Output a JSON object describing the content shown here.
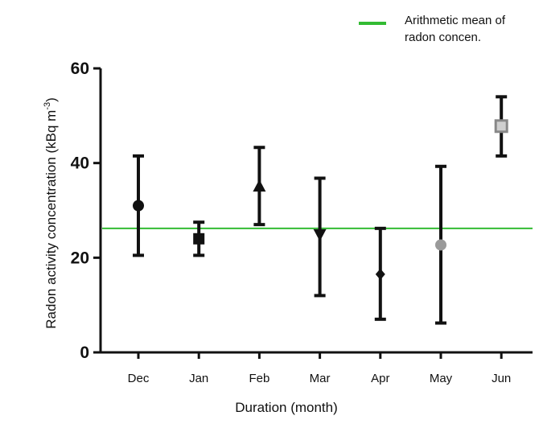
{
  "chart_data": {
    "type": "scatter",
    "title": "",
    "xlabel": "Duration (month)",
    "ylabel_main": "Radon activity concentration (kBq m",
    "ylabel_sup": "-3",
    "ylabel_close": ")",
    "ylim": [
      0,
      60
    ],
    "yticks": [
      0,
      20,
      40,
      60
    ],
    "categories": [
      "Dec",
      "Jan",
      "Feb",
      "Mar",
      "Apr",
      "May",
      "Jun"
    ],
    "points": [
      {
        "x": "Dec",
        "y": 31,
        "low": 20.5,
        "high": 41.5,
        "marker": "circle",
        "color": "#111111"
      },
      {
        "x": "Jan",
        "y": 24,
        "low": 20.5,
        "high": 27.5,
        "marker": "square",
        "color": "#111111"
      },
      {
        "x": "Feb",
        "y": 35,
        "low": 27,
        "high": 43.3,
        "marker": "triangle",
        "color": "#111111"
      },
      {
        "x": "Mar",
        "y": 25,
        "low": 12,
        "high": 36.8,
        "marker": "triangle-down",
        "color": "#111111"
      },
      {
        "x": "Apr",
        "y": 16.5,
        "low": 7,
        "high": 26.2,
        "marker": "diamond",
        "color": "#111111"
      },
      {
        "x": "May",
        "y": 22.7,
        "low": 6.2,
        "high": 39.3,
        "marker": "circle",
        "color": "#9a9a9a"
      },
      {
        "x": "Jun",
        "y": 47.8,
        "low": 41.5,
        "high": 54,
        "marker": "square-open",
        "color": "#888888"
      }
    ],
    "reference_line": {
      "y": 26.2,
      "color": "#33bb33"
    },
    "legend": {
      "placement": "top-right",
      "lines": [
        "Arithmetic mean of",
        "radon concen."
      ]
    },
    "grid": false
  }
}
